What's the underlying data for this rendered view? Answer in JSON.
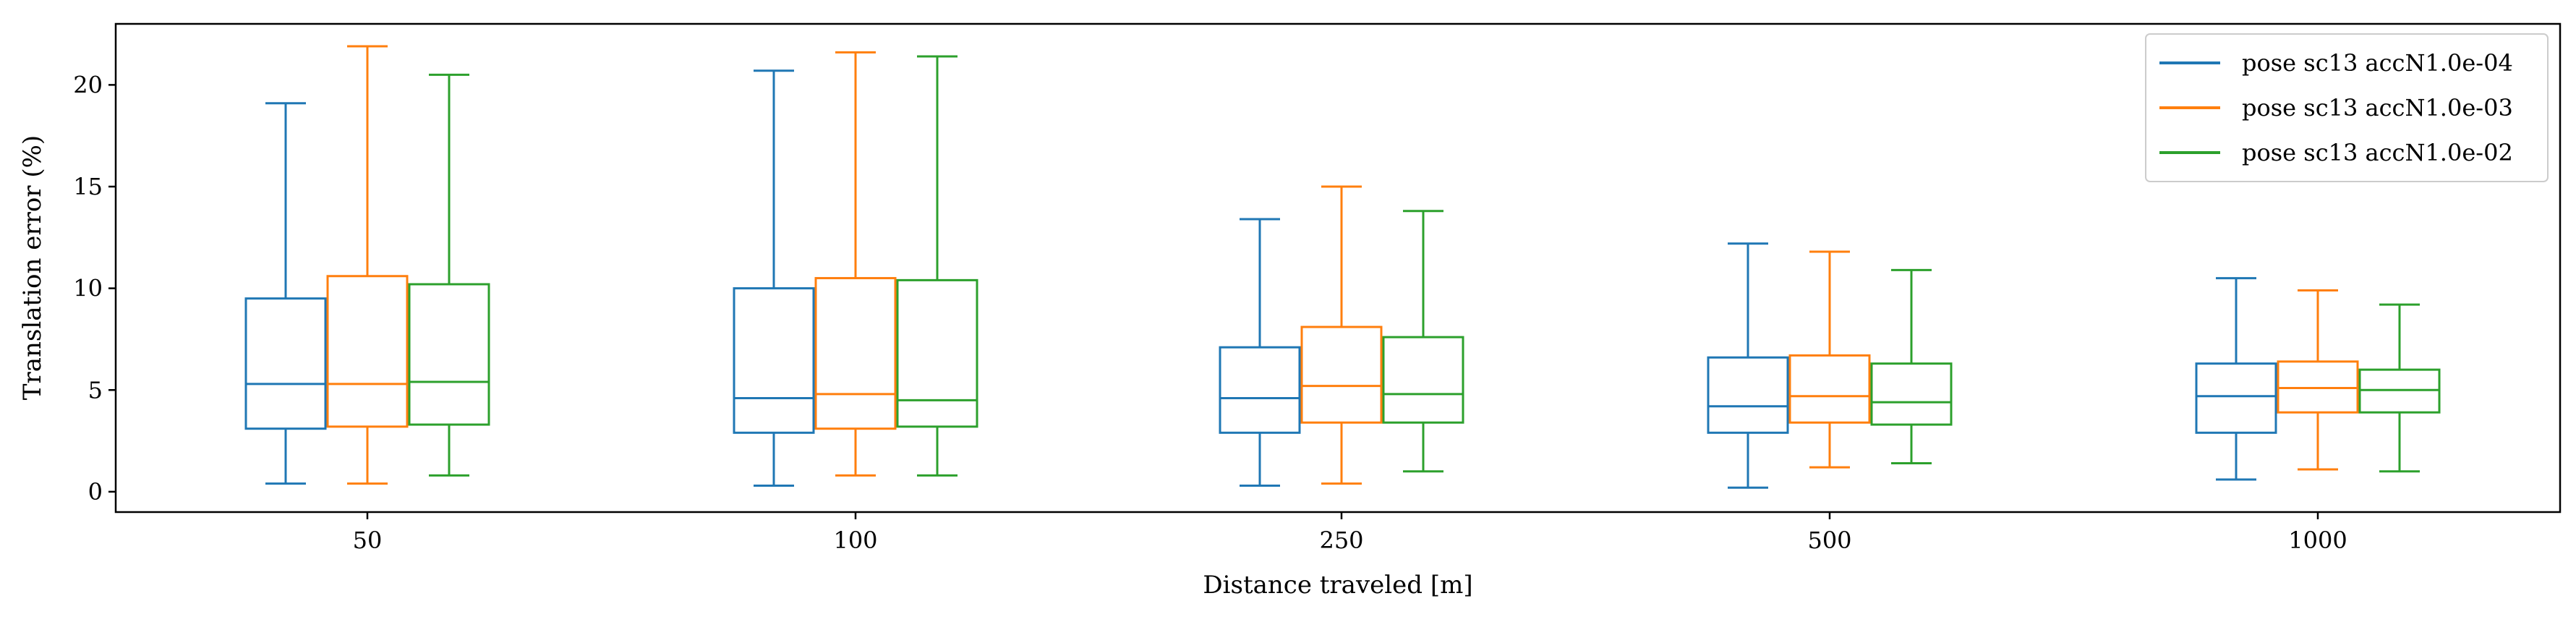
{
  "chart_data": {
    "type": "box",
    "title": "",
    "xlabel": "Distance traveled [m]",
    "ylabel": "Translation error (%)",
    "categories": [
      "50",
      "100",
      "250",
      "500",
      "1000"
    ],
    "ylim": [
      -1,
      23
    ],
    "yticks": [
      0,
      5,
      10,
      15,
      20
    ],
    "grid": false,
    "legend_position": "top-right",
    "series": [
      {
        "name": "pose sc13 accN1.0e-04",
        "color": "#1f77b4",
        "boxes": [
          {
            "whislo": 0.4,
            "q1": 3.1,
            "med": 5.3,
            "q3": 9.5,
            "whishi": 19.1
          },
          {
            "whislo": 0.3,
            "q1": 2.9,
            "med": 4.6,
            "q3": 10.0,
            "whishi": 20.7
          },
          {
            "whislo": 0.3,
            "q1": 2.9,
            "med": 4.6,
            "q3": 7.1,
            "whishi": 13.4
          },
          {
            "whislo": 0.2,
            "q1": 2.9,
            "med": 4.2,
            "q3": 6.6,
            "whishi": 12.2
          },
          {
            "whislo": 0.6,
            "q1": 2.9,
            "med": 4.7,
            "q3": 6.3,
            "whishi": 10.5
          }
        ]
      },
      {
        "name": "pose sc13 accN1.0e-03",
        "color": "#ff7f0e",
        "boxes": [
          {
            "whislo": 0.4,
            "q1": 3.2,
            "med": 5.3,
            "q3": 10.6,
            "whishi": 21.9
          },
          {
            "whislo": 0.8,
            "q1": 3.1,
            "med": 4.8,
            "q3": 10.5,
            "whishi": 21.6
          },
          {
            "whislo": 0.4,
            "q1": 3.4,
            "med": 5.2,
            "q3": 8.1,
            "whishi": 15.0
          },
          {
            "whislo": 1.2,
            "q1": 3.4,
            "med": 4.7,
            "q3": 6.7,
            "whishi": 11.8
          },
          {
            "whislo": 1.1,
            "q1": 3.9,
            "med": 5.1,
            "q3": 6.4,
            "whishi": 9.9
          }
        ]
      },
      {
        "name": "pose sc13 accN1.0e-02",
        "color": "#2ca02c",
        "boxes": [
          {
            "whislo": 0.8,
            "q1": 3.3,
            "med": 5.4,
            "q3": 10.2,
            "whishi": 20.5
          },
          {
            "whislo": 0.8,
            "q1": 3.2,
            "med": 4.5,
            "q3": 10.4,
            "whishi": 21.4
          },
          {
            "whislo": 1.0,
            "q1": 3.4,
            "med": 4.8,
            "q3": 7.6,
            "whishi": 13.8
          },
          {
            "whislo": 1.4,
            "q1": 3.3,
            "med": 4.4,
            "q3": 6.3,
            "whishi": 10.9
          },
          {
            "whislo": 1.0,
            "q1": 3.9,
            "med": 5.0,
            "q3": 6.0,
            "whishi": 9.2
          }
        ]
      }
    ]
  }
}
